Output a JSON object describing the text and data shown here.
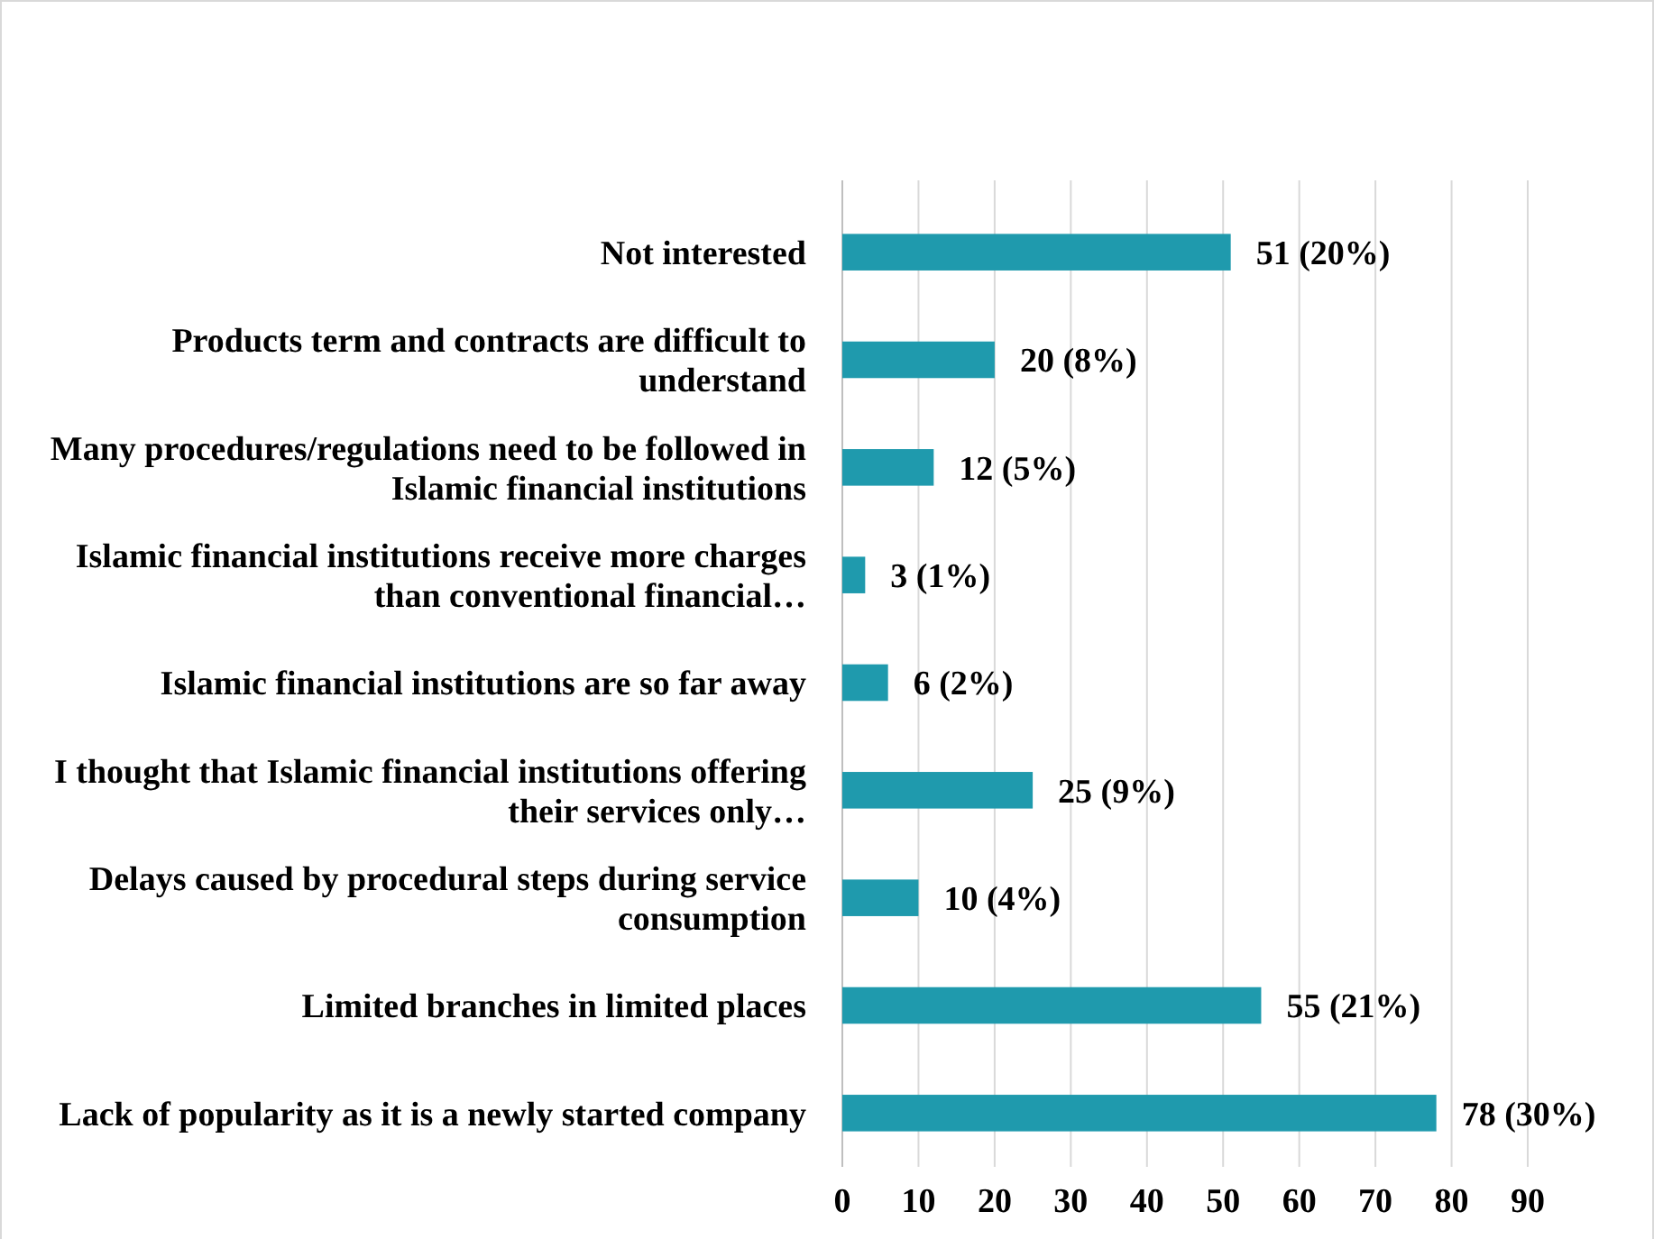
{
  "chart_data": {
    "type": "bar",
    "orientation": "horizontal",
    "categories": [
      "Not interested",
      "Products term and contracts are difficult to understand",
      "Many procedures/regulations need to be followed in Islamic financial institutions",
      "Islamic financial institutions receive more charges than conventional financial…",
      "Islamic financial institutions are so far away",
      "I thought that Islamic financial institutions offering their services only…",
      "Delays caused by procedural steps during service consumption",
      "Limited branches in limited places",
      "Lack of popularity as it is a newly started company"
    ],
    "values": [
      51,
      20,
      12,
      3,
      6,
      25,
      10,
      55,
      78
    ],
    "value_labels": [
      "51 (20%)",
      "20 (8%)",
      "12 (5%)",
      "3 (1%)",
      "6 (2%)",
      "25 (9%)",
      "10 (4%)",
      "55 (21%)",
      "78 (30%)"
    ],
    "color": "#1f9aad",
    "xlim": [
      0,
      90
    ],
    "xticks": [
      0,
      10,
      20,
      30,
      40,
      50,
      60,
      70,
      80,
      90
    ],
    "grid": "x"
  }
}
